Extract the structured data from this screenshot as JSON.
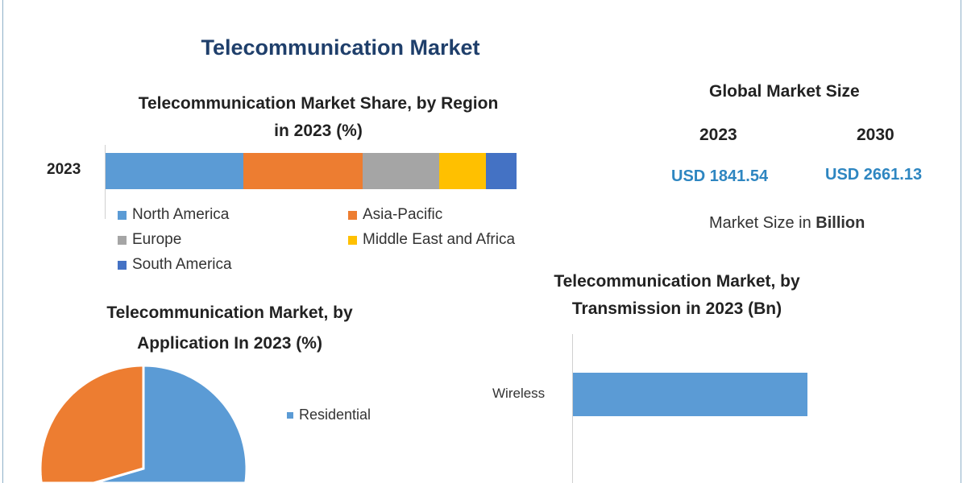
{
  "title": "Telecommunication Market",
  "colors": {
    "title": "#1f3f6b",
    "value": "#2e86c1"
  },
  "global_market": {
    "title": "Global Market Size",
    "years": [
      "2023",
      "2030"
    ],
    "values": [
      "USD 1841.54",
      "USD 2661.13"
    ],
    "note_prefix": "Market Size in ",
    "note_unit": "Billion"
  },
  "chart_data": [
    {
      "type": "bar",
      "stacked": true,
      "orientation": "horizontal",
      "title_line1": "Telecommunication Market Share, by Region",
      "title_line2": "in 2023 (%)",
      "categories": [
        "2023"
      ],
      "legend_placement": "bottom",
      "series": [
        {
          "name": "North America",
          "values": [
            33.5
          ],
          "color": "#5b9bd5"
        },
        {
          "name": "Asia-Pacific",
          "values": [
            29.0
          ],
          "color": "#ed7d31"
        },
        {
          "name": "Europe",
          "values": [
            18.6
          ],
          "color": "#a5a5a5"
        },
        {
          "name": "Middle East and Africa",
          "values": [
            11.4
          ],
          "color": "#ffc000"
        },
        {
          "name": "South America",
          "values": [
            7.5
          ],
          "color": "#4472c4"
        }
      ]
    },
    {
      "type": "pie",
      "title_line1": "Telecommunication Market, by",
      "title_line2": "Application In 2023 (%)",
      "slices": [
        {
          "name": "Residential",
          "value": 58,
          "color": "#5b9bd5"
        },
        {
          "value": 42,
          "color": "#ed7d31"
        }
      ],
      "legend_placement": "right"
    },
    {
      "type": "bar",
      "orientation": "horizontal",
      "title_line1": "Telecommunication Market, by",
      "title_line2": "Transmission in 2023 (Bn)",
      "categories": [
        "Wireless"
      ],
      "bar_fill_fraction": [
        0.75
      ],
      "color": "#5b9bd5"
    }
  ]
}
